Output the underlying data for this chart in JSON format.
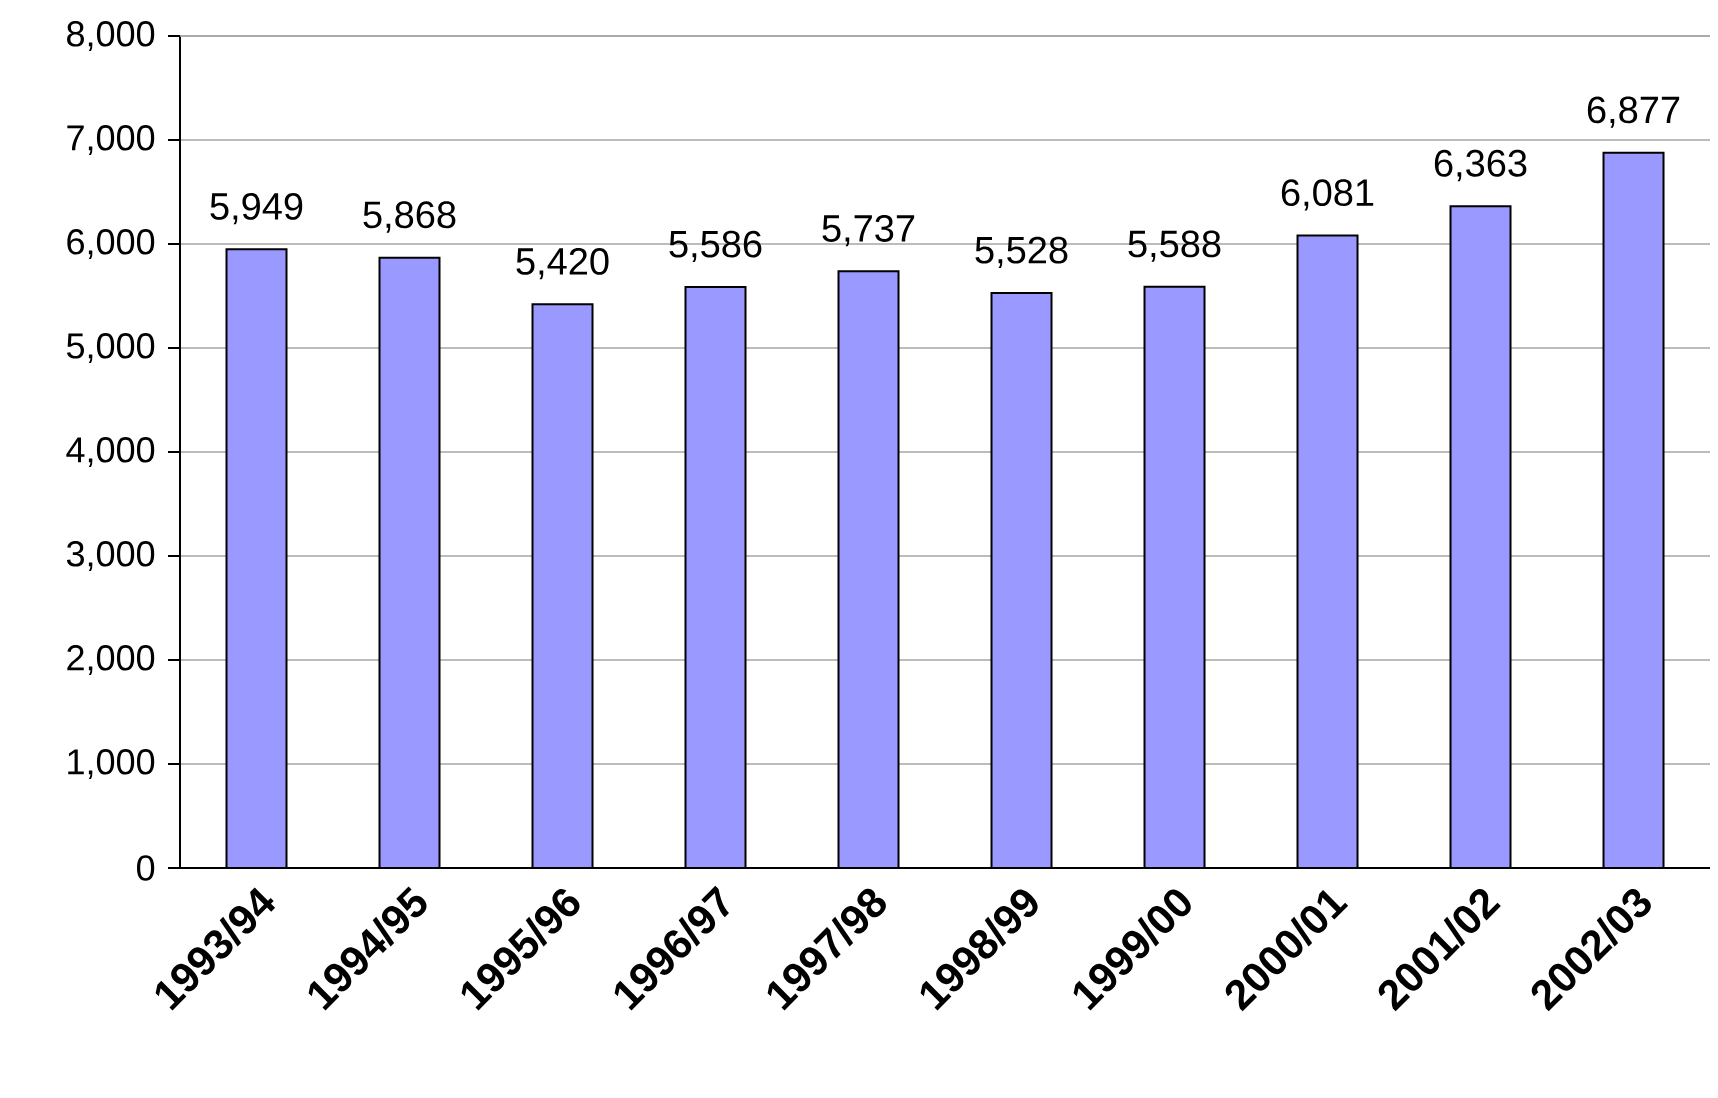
{
  "chart_data": {
    "type": "bar",
    "categories": [
      "1993/94",
      "1994/95",
      "1995/96",
      "1996/97",
      "1997/98",
      "1998/99",
      "1999/00",
      "2000/01",
      "2001/02",
      "2002/03"
    ],
    "values": [
      5949,
      5868,
      5420,
      5586,
      5737,
      5528,
      5588,
      6081,
      6363,
      6877
    ],
    "value_labels": [
      "5,949",
      "5,868",
      "5,420",
      "5,586",
      "5,737",
      "5,528",
      "5,588",
      "6,081",
      "6,363",
      "6,877"
    ],
    "color": "#9999ff",
    "grid": "y",
    "ylim": [
      0,
      8000
    ],
    "yticks": [
      {
        "value": 0,
        "label": "0"
      },
      {
        "value": 1000,
        "label": "1,000"
      },
      {
        "value": 2000,
        "label": "2,000"
      },
      {
        "value": 3000,
        "label": "3,000"
      },
      {
        "value": 4000,
        "label": "4,000"
      },
      {
        "value": 5000,
        "label": "5,000"
      },
      {
        "value": 6000,
        "label": "6,000"
      },
      {
        "value": 7000,
        "label": "7,000"
      },
      {
        "value": 8000,
        "label": "8,000"
      }
    ]
  }
}
